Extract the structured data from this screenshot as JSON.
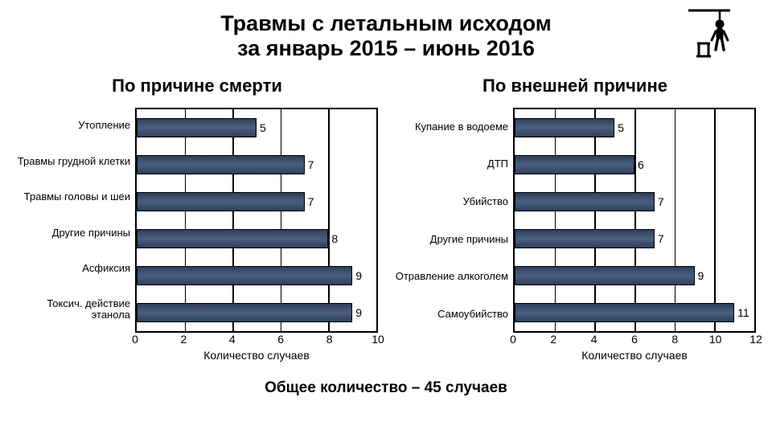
{
  "title_line1": "Травмы с летальным исходом",
  "title_line2": "за январь 2015 – июнь 2016",
  "footer": "Общее количество – 45 случаев",
  "bar_color": "#3a4e6e",
  "border_color": "#000000",
  "background_color": "#ffffff",
  "label_fontsize": 13,
  "left_chart": {
    "subtitle": "По причине смерти",
    "type": "bar-horizontal",
    "categories": [
      "Утопление",
      "Травмы грудной клетки",
      "Травмы головы и шеи",
      "Другие причины",
      "Асфиксия",
      "Токсич. действие этанола"
    ],
    "values": [
      5,
      7,
      7,
      8,
      9,
      9
    ],
    "xlim": [
      0,
      10
    ],
    "xtick_step": 2,
    "xticks": [
      0,
      2,
      4,
      6,
      8,
      10
    ],
    "xlabel": "Количество случаев"
  },
  "right_chart": {
    "subtitle": "По внешней причине",
    "type": "bar-horizontal",
    "categories": [
      "Купание в водоеме",
      "ДТП",
      "Убийство",
      "Другие причины",
      "Отравление алкоголем",
      "Самоубийство"
    ],
    "values": [
      5,
      6,
      7,
      7,
      9,
      11
    ],
    "xlim": [
      0,
      12
    ],
    "xtick_step": 2,
    "xticks": [
      0,
      2,
      4,
      6,
      8,
      10,
      12
    ],
    "xlabel": "Количество случаев"
  }
}
